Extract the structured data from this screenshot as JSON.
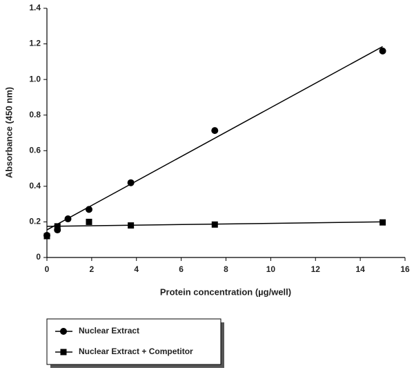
{
  "chart_data": {
    "type": "scatter",
    "x_label": "Protein concentration (µg/well)",
    "y_label": "Absorbance (450 nm)",
    "xlim": [
      0,
      16
    ],
    "xticks": [
      0,
      2,
      4,
      6,
      8,
      10,
      12,
      14,
      16
    ],
    "ylim": [
      0,
      1.4
    ],
    "yticks": [
      0,
      0.2,
      0.4,
      0.6,
      0.8,
      {
        "value": 1,
        "label": "1.0"
      },
      1.2,
      1.4
    ],
    "grid": false,
    "series": [
      {
        "name": "Nuclear Extract",
        "color": "#000000",
        "marker": "circle",
        "x": [
          0,
          0.47,
          0.94,
          1.88,
          3.75,
          7.5,
          15
        ],
        "values": [
          0.124,
          0.155,
          0.217,
          0.27,
          0.42,
          0.713,
          1.16
        ],
        "fit": {
          "x": [
            0,
            15
          ],
          "values": [
            0.155,
            1.185
          ]
        }
      },
      {
        "name": "Nuclear Extract + Competitor",
        "color": "#000000",
        "marker": "square",
        "x": [
          0,
          0.47,
          1.88,
          3.75,
          7.5,
          15
        ],
        "values": [
          0.12,
          0.175,
          0.2,
          0.18,
          0.185,
          0.197
        ],
        "fit": {
          "x": [
            0,
            15
          ],
          "values": [
            0.175,
            0.2
          ]
        }
      }
    ]
  }
}
